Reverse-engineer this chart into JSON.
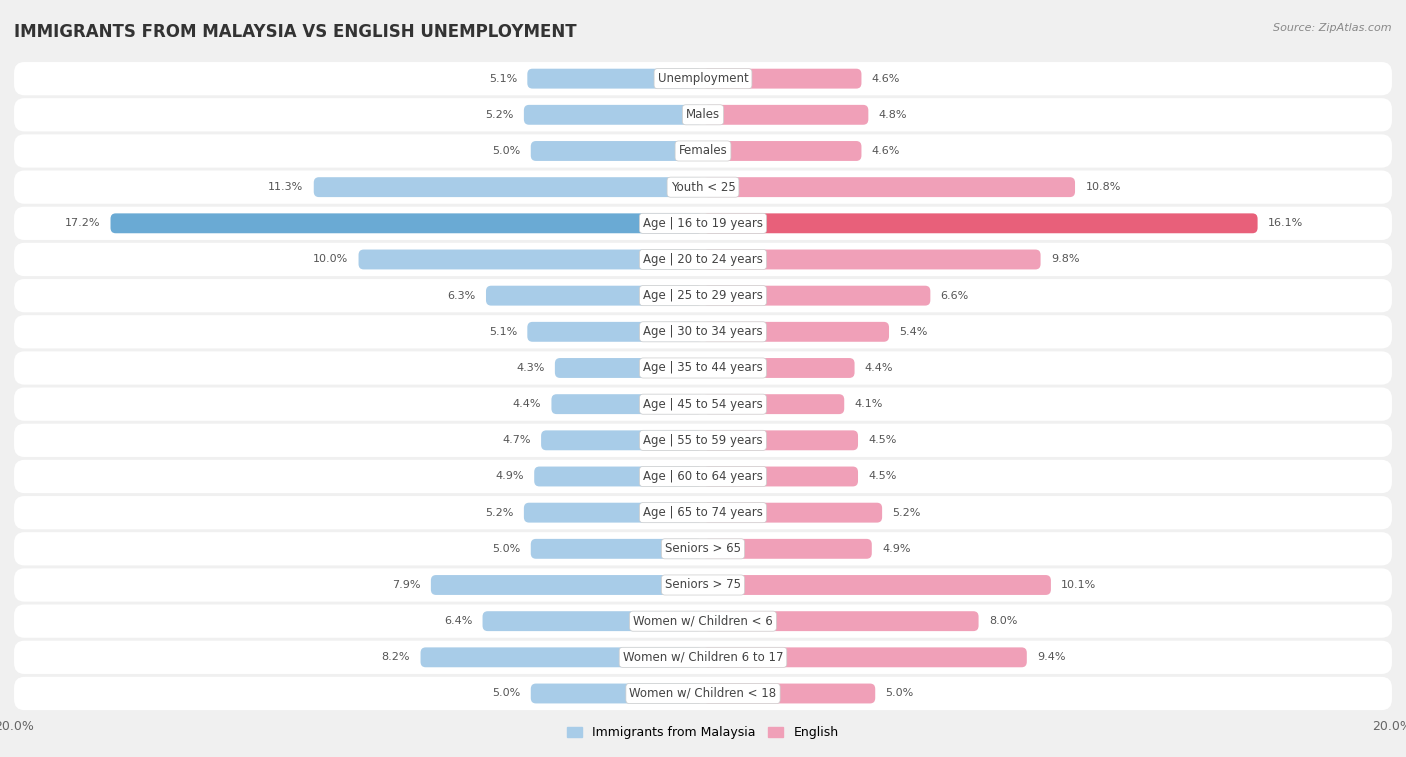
{
  "title": "IMMIGRANTS FROM MALAYSIA VS ENGLISH UNEMPLOYMENT",
  "source": "Source: ZipAtlas.com",
  "categories": [
    "Unemployment",
    "Males",
    "Females",
    "Youth < 25",
    "Age | 16 to 19 years",
    "Age | 20 to 24 years",
    "Age | 25 to 29 years",
    "Age | 30 to 34 years",
    "Age | 35 to 44 years",
    "Age | 45 to 54 years",
    "Age | 55 to 59 years",
    "Age | 60 to 64 years",
    "Age | 65 to 74 years",
    "Seniors > 65",
    "Seniors > 75",
    "Women w/ Children < 6",
    "Women w/ Children 6 to 17",
    "Women w/ Children < 18"
  ],
  "malaysia_values": [
    5.1,
    5.2,
    5.0,
    11.3,
    17.2,
    10.0,
    6.3,
    5.1,
    4.3,
    4.4,
    4.7,
    4.9,
    5.2,
    5.0,
    7.9,
    6.4,
    8.2,
    5.0
  ],
  "english_values": [
    4.6,
    4.8,
    4.6,
    10.8,
    16.1,
    9.8,
    6.6,
    5.4,
    4.4,
    4.1,
    4.5,
    4.5,
    5.2,
    4.9,
    10.1,
    8.0,
    9.4,
    5.0
  ],
  "malaysia_color": "#a8cce8",
  "english_color": "#f0a0b8",
  "malaysia_highlight_color": "#6aaad4",
  "english_highlight_color": "#e8607a",
  "row_bg_color": "#ebebeb",
  "row_fill_color": "#ffffff",
  "background_color": "#f0f0f0",
  "max_value": 20.0,
  "legend_malaysia": "Immigrants from Malaysia",
  "legend_english": "English",
  "title_fontsize": 12,
  "label_fontsize": 8.5,
  "value_fontsize": 8
}
